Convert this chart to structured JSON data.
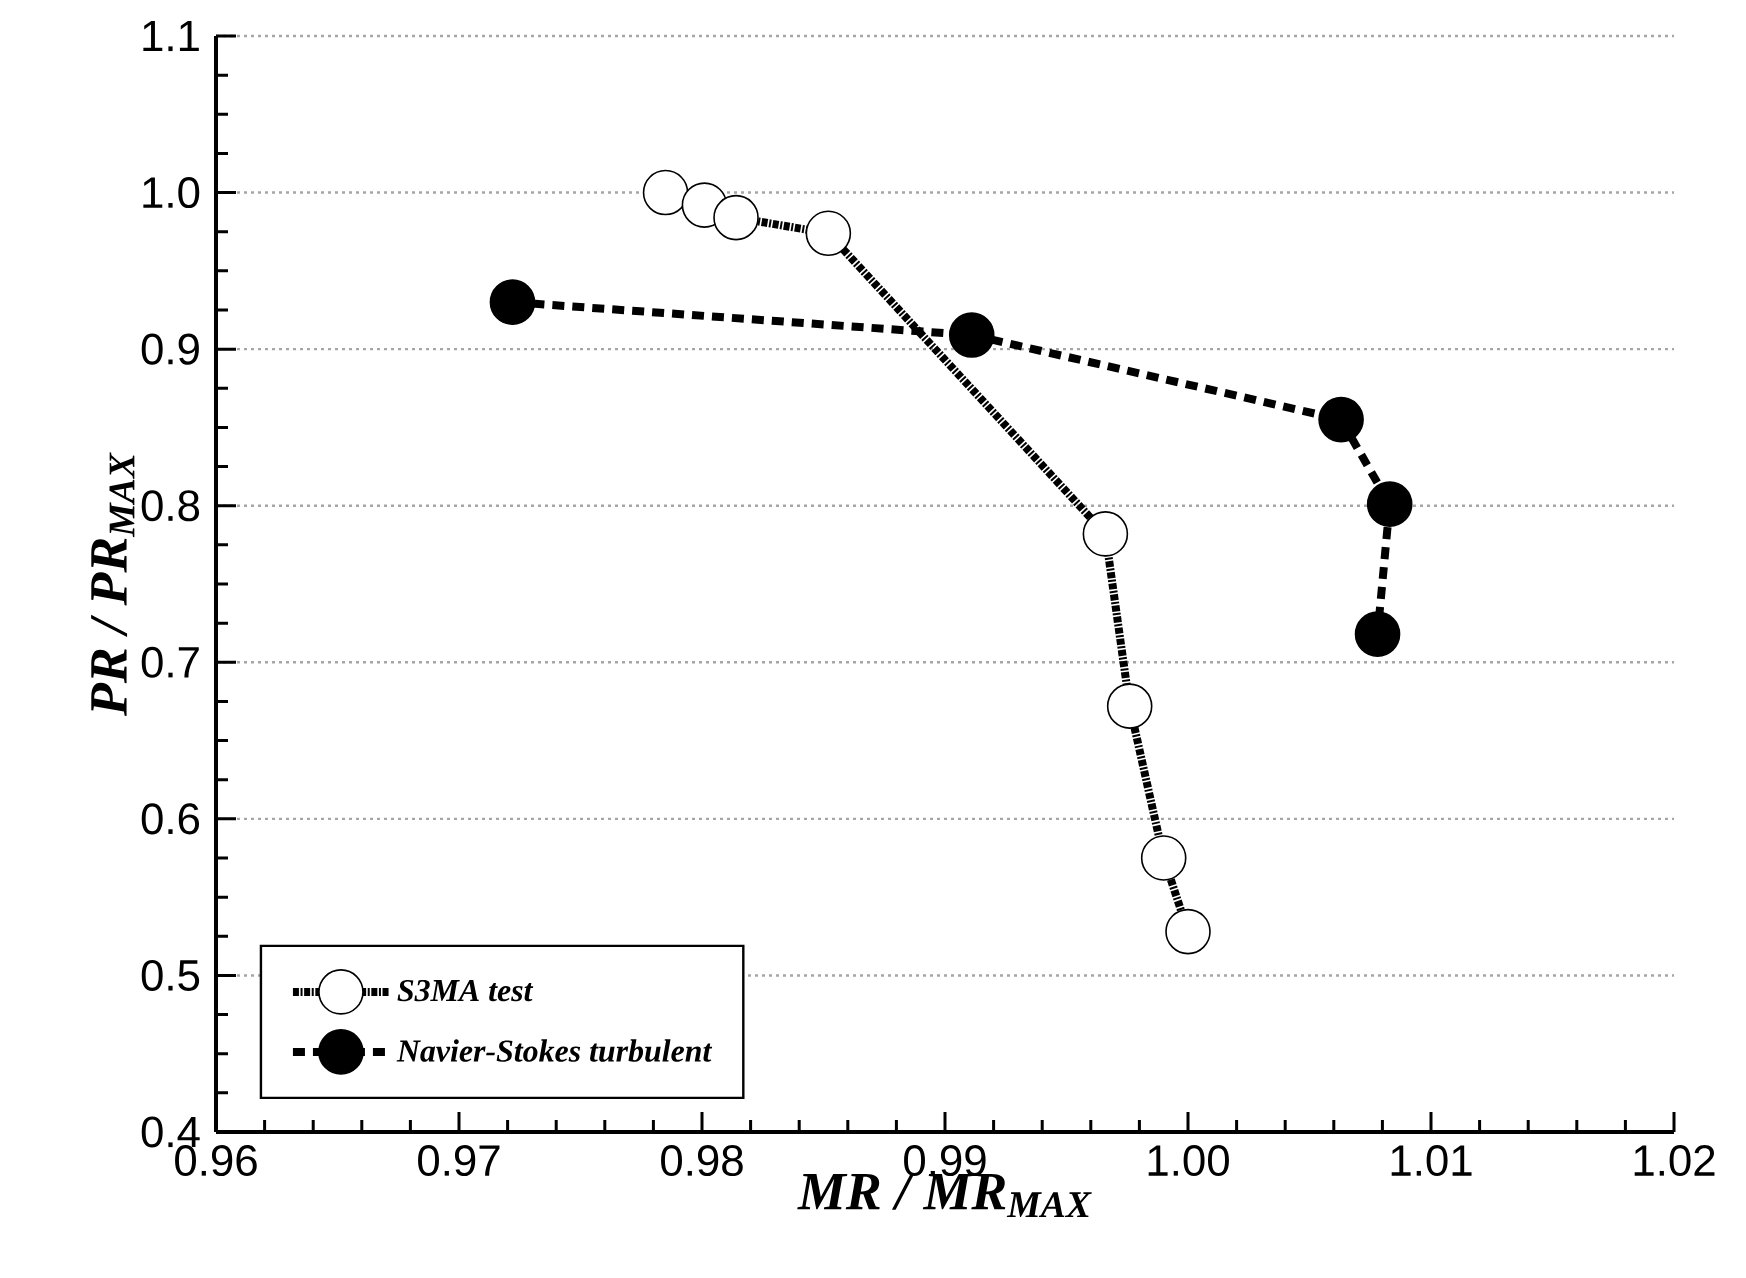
{
  "chart_data": {
    "type": "line",
    "xlabel": "MR / MR$_{MAX}$",
    "ylabel": "PR / PR$_{MAX}$",
    "xlim": [
      0.96,
      1.02
    ],
    "xticks": [
      {
        "value": 0.96,
        "label": "0.96"
      },
      {
        "value": 0.97,
        "label": "0.97"
      },
      {
        "value": 0.98,
        "label": "0.98"
      },
      {
        "value": 0.99,
        "label": "0.99"
      },
      {
        "value": 1.0,
        "label": "1.00"
      },
      {
        "value": 1.01,
        "label": "1.01"
      },
      {
        "value": 1.02,
        "label": "1.02"
      }
    ],
    "ylim": [
      0.4,
      1.1
    ],
    "yticks": [
      0.4,
      0.5,
      0.6,
      0.7,
      0.8,
      0.9,
      {
        "value": 1.0,
        "label": "1.0"
      },
      1.1
    ],
    "grid": "y",
    "legend": "bottom left",
    "marker": "circle",
    "series": [
      {
        "name": "S3MA test",
        "color": "#ffffff",
        "line_style": "dotted",
        "x": [
          0.9785,
          0.9801,
          0.9814,
          0.9852,
          0.9966,
          0.9976,
          0.999,
          1.0
        ],
        "values": [
          1.0,
          0.992,
          0.984,
          0.974,
          0.782,
          0.672,
          0.575,
          0.528
        ]
      },
      {
        "name": "Navier-Stokes turbulent",
        "color": "#000000",
        "line_style": "dashed",
        "x": [
          0.9722,
          0.9911,
          1.0063,
          1.0083,
          1.0078
        ],
        "values": [
          0.93,
          0.909,
          0.855,
          0.801,
          0.718
        ]
      }
    ]
  }
}
